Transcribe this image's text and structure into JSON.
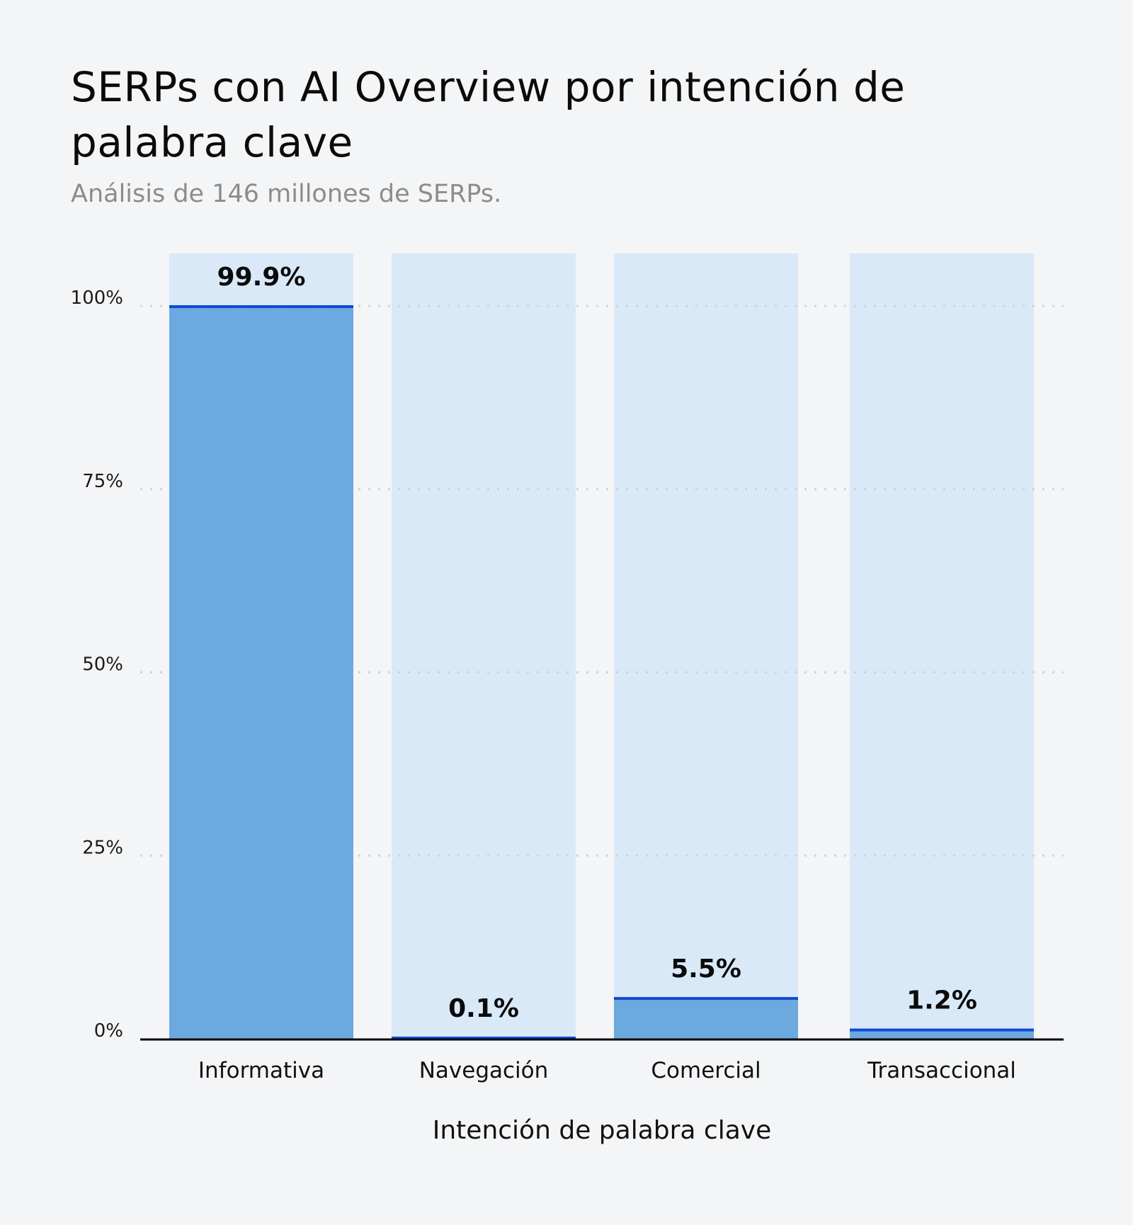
{
  "chart_data": {
    "type": "bar",
    "title": "SERPs con AI Overview por intención de palabra clave",
    "subtitle": "Análisis de 146 millones de SERPs.",
    "xlabel": "Intención de palabra clave",
    "ylabel": "",
    "categories": [
      "Informativa",
      "Navegación",
      "Comercial",
      "Transaccional"
    ],
    "values": [
      99.9,
      0.1,
      5.5,
      1.2
    ],
    "data_labels": [
      "99.9%",
      "0.1%",
      "5.5%",
      "1.2%"
    ],
    "ylim": [
      0,
      100
    ],
    "yticks": [
      0,
      25,
      50,
      75,
      100
    ],
    "ytick_labels": [
      "0%",
      "25%",
      "50%",
      "75%",
      "100%"
    ],
    "grid": true,
    "colors": {
      "bar": "#6ca9df",
      "background_bar": "#d9e9f8",
      "bar_top_line": "#1148d6",
      "axis": "#000000",
      "grid": "#d0d2d5"
    }
  }
}
